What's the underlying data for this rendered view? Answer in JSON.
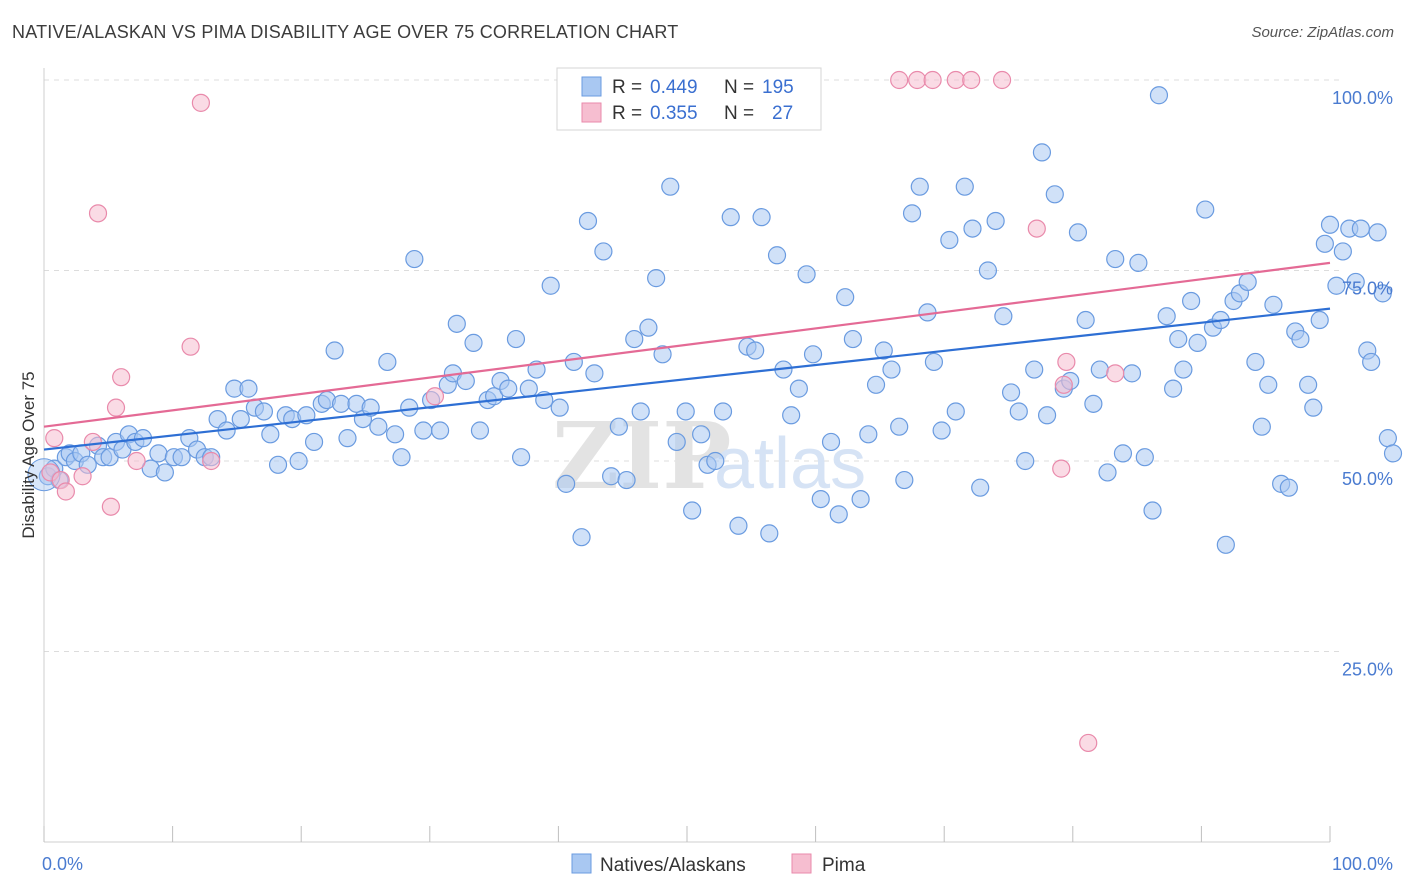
{
  "title": "NATIVE/ALASKAN VS PIMA DISABILITY AGE OVER 75 CORRELATION CHART",
  "source": "Source: ZipAtlas.com",
  "watermark": {
    "part1": "ZIP",
    "part2": "atlas"
  },
  "colors": {
    "blue_fill": "#a9c8f2",
    "blue_stroke": "#6a9be0",
    "blue_line": "#2e6fd4",
    "pink_fill": "#f6bed0",
    "pink_stroke": "#e98aab",
    "pink_line": "#e46a95",
    "grid": "#dcdcdc",
    "tick_text": "#4a7bd0"
  },
  "legend": {
    "rows": [
      {
        "r_label": "R = ",
        "r_value": "0.449",
        "n_label": "N = ",
        "n_value": "195"
      },
      {
        "r_label": "R = ",
        "r_value": "0.355",
        "n_label": "N = ",
        "n_value": "27"
      }
    ]
  },
  "bottom_legend": {
    "items": [
      "Natives/Alaskans",
      "Pima"
    ]
  },
  "chart_data": {
    "type": "scatter",
    "xlabel": "",
    "ylabel": "Disability Age Over 75",
    "xlim": [
      0,
      100
    ],
    "ylim": [
      0,
      100
    ],
    "x_tick_labels": [
      "0.0%",
      "100.0%"
    ],
    "y_ticks": [
      25,
      50,
      75,
      100
    ],
    "y_tick_labels": [
      "25.0%",
      "50.0%",
      "75.0%",
      "100.0%"
    ],
    "grid": true,
    "series": [
      {
        "name": "Natives/Alaskans",
        "trend": {
          "x0": 0,
          "y0": 51.5,
          "x1": 100,
          "y1": 70
        },
        "points": [
          [
            0.3,
            48
          ],
          [
            0.8,
            49
          ],
          [
            1.2,
            47.5
          ],
          [
            1.7,
            50.5
          ],
          [
            2,
            51
          ],
          [
            2.4,
            50
          ],
          [
            2.9,
            51
          ],
          [
            3.4,
            49.5
          ],
          [
            4.2,
            52
          ],
          [
            4.6,
            50.5
          ],
          [
            5.1,
            50.5
          ],
          [
            5.6,
            52.5
          ],
          [
            6.1,
            51.5
          ],
          [
            6.6,
            53.5
          ],
          [
            7.1,
            52.5
          ],
          [
            7.7,
            53
          ],
          [
            8.3,
            49
          ],
          [
            8.9,
            51
          ],
          [
            9.4,
            48.5
          ],
          [
            10.1,
            50.5
          ],
          [
            10.7,
            50.5
          ],
          [
            11.3,
            53
          ],
          [
            11.9,
            51.5
          ],
          [
            12.5,
            50.5
          ],
          [
            13,
            50.5
          ],
          [
            13.5,
            55.5
          ],
          [
            14.2,
            54
          ],
          [
            14.8,
            59.5
          ],
          [
            15.3,
            55.5
          ],
          [
            15.9,
            59.5
          ],
          [
            16.4,
            57
          ],
          [
            17.1,
            56.5
          ],
          [
            17.6,
            53.5
          ],
          [
            18.2,
            49.5
          ],
          [
            18.8,
            56
          ],
          [
            19.3,
            55.5
          ],
          [
            19.8,
            50
          ],
          [
            20.4,
            56
          ],
          [
            21,
            52.5
          ],
          [
            21.6,
            57.5
          ],
          [
            22,
            58
          ],
          [
            22.6,
            64.5
          ],
          [
            23.1,
            57.5
          ],
          [
            23.6,
            53
          ],
          [
            24.3,
            57.5
          ],
          [
            24.8,
            55.5
          ],
          [
            25.4,
            57
          ],
          [
            26,
            54.5
          ],
          [
            26.7,
            63
          ],
          [
            27.3,
            53.5
          ],
          [
            27.8,
            50.5
          ],
          [
            28.4,
            57
          ],
          [
            28.8,
            76.5
          ],
          [
            29.5,
            54
          ],
          [
            30.1,
            58
          ],
          [
            30.8,
            54
          ],
          [
            31.4,
            60
          ],
          [
            31.8,
            61.5
          ],
          [
            32.1,
            68
          ],
          [
            32.8,
            60.5
          ],
          [
            33.4,
            65.5
          ],
          [
            33.9,
            54
          ],
          [
            34.5,
            58
          ],
          [
            35,
            58.5
          ],
          [
            35.5,
            60.5
          ],
          [
            36.1,
            59.5
          ],
          [
            36.7,
            66
          ],
          [
            37.1,
            50.5
          ],
          [
            37.7,
            59.5
          ],
          [
            38.3,
            62
          ],
          [
            38.9,
            58
          ],
          [
            39.4,
            73
          ],
          [
            40.1,
            57
          ],
          [
            40.6,
            47
          ],
          [
            41.2,
            63
          ],
          [
            41.8,
            40
          ],
          [
            42.3,
            81.5
          ],
          [
            42.8,
            61.5
          ],
          [
            43.5,
            77.5
          ],
          [
            44.1,
            48
          ],
          [
            44.7,
            54.5
          ],
          [
            45.3,
            47.5
          ],
          [
            45.9,
            66
          ],
          [
            46.4,
            56.5
          ],
          [
            47,
            67.5
          ],
          [
            47.6,
            74
          ],
          [
            48.1,
            64
          ],
          [
            48.7,
            86
          ],
          [
            49.2,
            52.5
          ],
          [
            49.9,
            56.5
          ],
          [
            50.4,
            43.5
          ],
          [
            51.1,
            53.5
          ],
          [
            51.6,
            49.5
          ],
          [
            52.2,
            50
          ],
          [
            52.8,
            56.5
          ],
          [
            53.4,
            82
          ],
          [
            54,
            41.5
          ],
          [
            54.7,
            65
          ],
          [
            55.3,
            64.5
          ],
          [
            55.8,
            82
          ],
          [
            56.4,
            40.5
          ],
          [
            57,
            77
          ],
          [
            57.5,
            62
          ],
          [
            58.1,
            56
          ],
          [
            58.7,
            59.5
          ],
          [
            59.3,
            74.5
          ],
          [
            59.8,
            64
          ],
          [
            60.4,
            45
          ],
          [
            61.2,
            52.5
          ],
          [
            61.8,
            43
          ],
          [
            62.3,
            71.5
          ],
          [
            62.9,
            66
          ],
          [
            63.5,
            45
          ],
          [
            64.1,
            53.5
          ],
          [
            64.7,
            60
          ],
          [
            65.3,
            64.5
          ],
          [
            65.9,
            62
          ],
          [
            66.5,
            54.5
          ],
          [
            66.9,
            47.5
          ],
          [
            67.5,
            82.5
          ],
          [
            68.1,
            86
          ],
          [
            68.7,
            69.5
          ],
          [
            69.2,
            63
          ],
          [
            69.8,
            54
          ],
          [
            70.4,
            79
          ],
          [
            70.9,
            56.5
          ],
          [
            71.6,
            86
          ],
          [
            72.2,
            80.5
          ],
          [
            72.8,
            46.5
          ],
          [
            73.4,
            75
          ],
          [
            74,
            81.5
          ],
          [
            74.6,
            69
          ],
          [
            75.2,
            59
          ],
          [
            75.8,
            56.5
          ],
          [
            76.3,
            50
          ],
          [
            77,
            62
          ],
          [
            77.6,
            90.5
          ],
          [
            78,
            56
          ],
          [
            78.6,
            85
          ],
          [
            79.3,
            59.5
          ],
          [
            79.8,
            60.5
          ],
          [
            80.4,
            80
          ],
          [
            81,
            68.5
          ],
          [
            81.6,
            57.5
          ],
          [
            82.1,
            62
          ],
          [
            82.7,
            48.5
          ],
          [
            83.3,
            76.5
          ],
          [
            83.9,
            51
          ],
          [
            84.6,
            61.5
          ],
          [
            85.1,
            76
          ],
          [
            85.6,
            50.5
          ],
          [
            86.2,
            43.5
          ],
          [
            86.7,
            98
          ],
          [
            87.3,
            69
          ],
          [
            87.8,
            59.5
          ],
          [
            88.2,
            66
          ],
          [
            88.6,
            62
          ],
          [
            89.2,
            71
          ],
          [
            89.7,
            65.5
          ],
          [
            90.3,
            83
          ],
          [
            90.9,
            67.5
          ],
          [
            91.5,
            68.5
          ],
          [
            91.9,
            39
          ],
          [
            92.5,
            71
          ],
          [
            93,
            72
          ],
          [
            93.6,
            73.5
          ],
          [
            94.2,
            63
          ],
          [
            94.7,
            54.5
          ],
          [
            95.2,
            60
          ],
          [
            95.6,
            70.5
          ],
          [
            96.2,
            47
          ],
          [
            96.8,
            46.5
          ],
          [
            97.3,
            67
          ],
          [
            97.7,
            66
          ],
          [
            98.3,
            60
          ],
          [
            98.7,
            57
          ],
          [
            99.2,
            68.5
          ],
          [
            99.6,
            78.5
          ],
          [
            100,
            81
          ],
          [
            100.5,
            73
          ],
          [
            101,
            77.5
          ],
          [
            101.5,
            80.5
          ],
          [
            102,
            73.5
          ],
          [
            102.4,
            80.5
          ],
          [
            102.9,
            64.5
          ],
          [
            103.2,
            63
          ],
          [
            103.7,
            80
          ],
          [
            104.1,
            72
          ],
          [
            104.5,
            53
          ],
          [
            104.9,
            51
          ]
        ]
      },
      {
        "name": "Pima",
        "trend": {
          "x0": 0,
          "y0": 54.5,
          "x1": 100,
          "y1": 76
        },
        "points": [
          [
            0.5,
            48.5
          ],
          [
            0.8,
            53
          ],
          [
            1.3,
            47.5
          ],
          [
            1.7,
            46
          ],
          [
            3,
            48
          ],
          [
            4.2,
            82.5
          ],
          [
            3.8,
            52.5
          ],
          [
            5.2,
            44
          ],
          [
            6,
            61
          ],
          [
            5.6,
            57
          ],
          [
            7.2,
            50
          ],
          [
            11.4,
            65
          ],
          [
            12.2,
            97
          ],
          [
            13,
            50
          ],
          [
            30.4,
            58.5
          ],
          [
            66.5,
            100
          ],
          [
            67.9,
            100
          ],
          [
            69.1,
            100
          ],
          [
            70.9,
            100
          ],
          [
            72.1,
            100
          ],
          [
            74.5,
            100
          ],
          [
            77.2,
            80.5
          ],
          [
            79.5,
            63
          ],
          [
            79.3,
            60
          ],
          [
            79.1,
            49
          ],
          [
            83.3,
            61.5
          ],
          [
            81.2,
            13
          ]
        ]
      }
    ]
  }
}
